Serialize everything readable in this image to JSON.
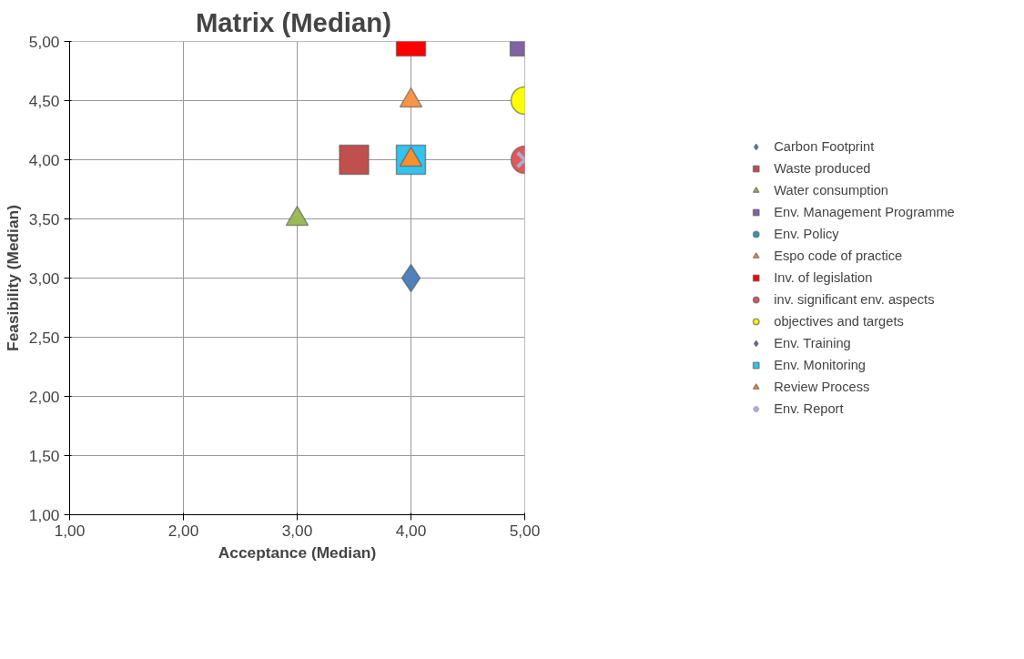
{
  "chart_data": {
    "type": "scatter",
    "title": "Matrix  (Median)",
    "xlabel": "Acceptance (Median)",
    "ylabel": "Feasibility (Median)",
    "xlim": [
      1,
      5
    ],
    "ylim": [
      1,
      5
    ],
    "xticks": [
      {
        "value": 1,
        "label": "1,00"
      },
      {
        "value": 2,
        "label": "2,00"
      },
      {
        "value": 3,
        "label": "3,00"
      },
      {
        "value": 4,
        "label": "4,00"
      },
      {
        "value": 5,
        "label": "5,00"
      }
    ],
    "yticks": [
      {
        "value": 1,
        "label": "1,00"
      },
      {
        "value": 1.5,
        "label": "1,50"
      },
      {
        "value": 2,
        "label": "2,00"
      },
      {
        "value": 2.5,
        "label": "2,50"
      },
      {
        "value": 3,
        "label": "3,00"
      },
      {
        "value": 3.5,
        "label": "3,50"
      },
      {
        "value": 4,
        "label": "4,00"
      },
      {
        "value": 4.5,
        "label": "4,50"
      },
      {
        "value": 5,
        "label": "5,00"
      }
    ],
    "grid": true,
    "legend": "right",
    "series": [
      {
        "name": "Carbon Footprint",
        "color": "#4f81bd",
        "marker": "diamond",
        "x": [
          4
        ],
        "values": [
          3
        ]
      },
      {
        "name": "Waste produced",
        "color": "#c0504d",
        "marker": "square",
        "x": [
          3.5
        ],
        "values": [
          4
        ]
      },
      {
        "name": "Water consumption",
        "color": "#9bbb59",
        "marker": "triangle",
        "x": [
          3
        ],
        "values": [
          3.5
        ]
      },
      {
        "name": "Env. Management Programme",
        "color": "#8064a2",
        "marker": "square",
        "x": [
          5
        ],
        "values": [
          5
        ]
      },
      {
        "name": "Env. Policy",
        "color": "#31a0a8",
        "marker": "circle",
        "x": [
          null
        ],
        "values": [
          null
        ]
      },
      {
        "name": "Espo code of practice",
        "color": "#f79646",
        "marker": "triangle",
        "x": [
          4
        ],
        "values": [
          4.5
        ]
      },
      {
        "name": "Inv. of legislation",
        "color": "#ff0000",
        "marker": "square",
        "x": [
          4
        ],
        "values": [
          5
        ]
      },
      {
        "name": "inv. significant env. aspects",
        "color": "#e0585a",
        "marker": "circle",
        "x": [
          5
        ],
        "values": [
          4
        ]
      },
      {
        "name": "objectives and targets",
        "color": "#ffff00",
        "marker": "circle",
        "x": [
          5
        ],
        "values": [
          4.5
        ]
      },
      {
        "name": "Env. Training",
        "color": "#7b5fa6",
        "marker": "diamond",
        "x": [
          null
        ],
        "values": [
          null
        ]
      },
      {
        "name": "Env. Monitoring",
        "color": "#33c3ee",
        "marker": "square",
        "x": [
          4
        ],
        "values": [
          4
        ]
      },
      {
        "name": "Review Process",
        "color": "#f7902f",
        "marker": "triangle",
        "x": [
          4
        ],
        "values": [
          4
        ]
      },
      {
        "name": "Env. Report",
        "color": "#a8aed0",
        "marker": "cross",
        "x": [
          5
        ],
        "values": [
          4
        ]
      }
    ]
  }
}
